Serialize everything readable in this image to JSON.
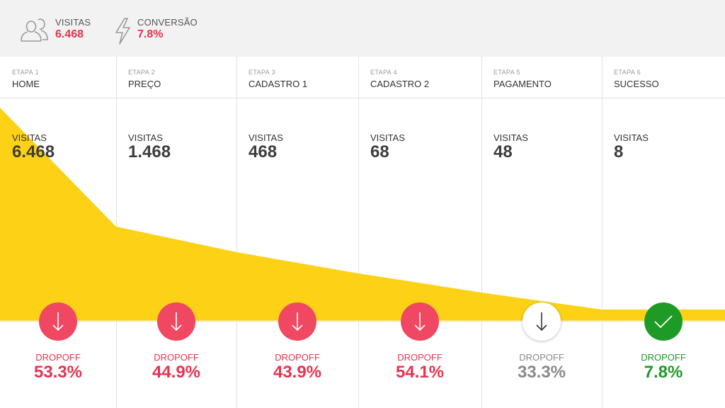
{
  "summary": {
    "visits_label": "VISITAS",
    "visits_value": "6.468",
    "conversion_label": "CONVERSÃO",
    "conversion_value": "7.8%"
  },
  "colors": {
    "funnel": "#fcd116",
    "dropoff": "#e8334f",
    "badge_red": "#f04863",
    "success": "#1e9a27",
    "neutral": "#8a8a8a"
  },
  "stages": [
    {
      "step": "ETAPA 1",
      "name": "HOME",
      "visits_label": "VISITAS",
      "visits": "6.468",
      "dropoff_label": "DROPOFF",
      "dropoff": "53.3%"
    },
    {
      "step": "ETAPA 2",
      "name": "PREÇO",
      "visits_label": "VISITAS",
      "visits": "1.468",
      "dropoff_label": "DROPOFF",
      "dropoff": "44.9%"
    },
    {
      "step": "ETAPA 3",
      "name": "CADASTRO 1",
      "visits_label": "VISITAS",
      "visits": "468",
      "dropoff_label": "DROPOFF",
      "dropoff": "43.9%"
    },
    {
      "step": "ETAPA 4",
      "name": "CADASTRO 2",
      "visits_label": "VISITAS",
      "visits": "68",
      "dropoff_label": "DROPOFF",
      "dropoff": "54.1%"
    },
    {
      "step": "ETAPA 5",
      "name": "PAGAMENTO",
      "visits_label": "VISITAS",
      "visits": "48",
      "dropoff_label": "DROPOFF",
      "dropoff": "33.3%"
    },
    {
      "step": "ETAPA 6",
      "name": "SUCESSO",
      "visits_label": "VISITAS",
      "visits": "8",
      "dropoff_label": "DROPOFF",
      "dropoff": "7.8%"
    }
  ],
  "chart_data": {
    "type": "area",
    "categories": [
      "HOME",
      "PREÇO",
      "CADASTRO 1",
      "CADASTRO 2",
      "PAGAMENTO",
      "SUCESSO"
    ],
    "series": [
      {
        "values": [
          6468,
          1468,
          468,
          68,
          48,
          8
        ]
      }
    ],
    "dropoff": [
      53.3,
      44.9,
      43.9,
      54.1,
      33.3,
      7.8
    ],
    "funnel_levels": [
      1.0,
      0.44,
      0.32,
      0.22,
      0.13,
      0.05
    ],
    "dropoff_status": [
      "bad",
      "bad",
      "bad",
      "bad",
      "neutral",
      "success"
    ]
  }
}
